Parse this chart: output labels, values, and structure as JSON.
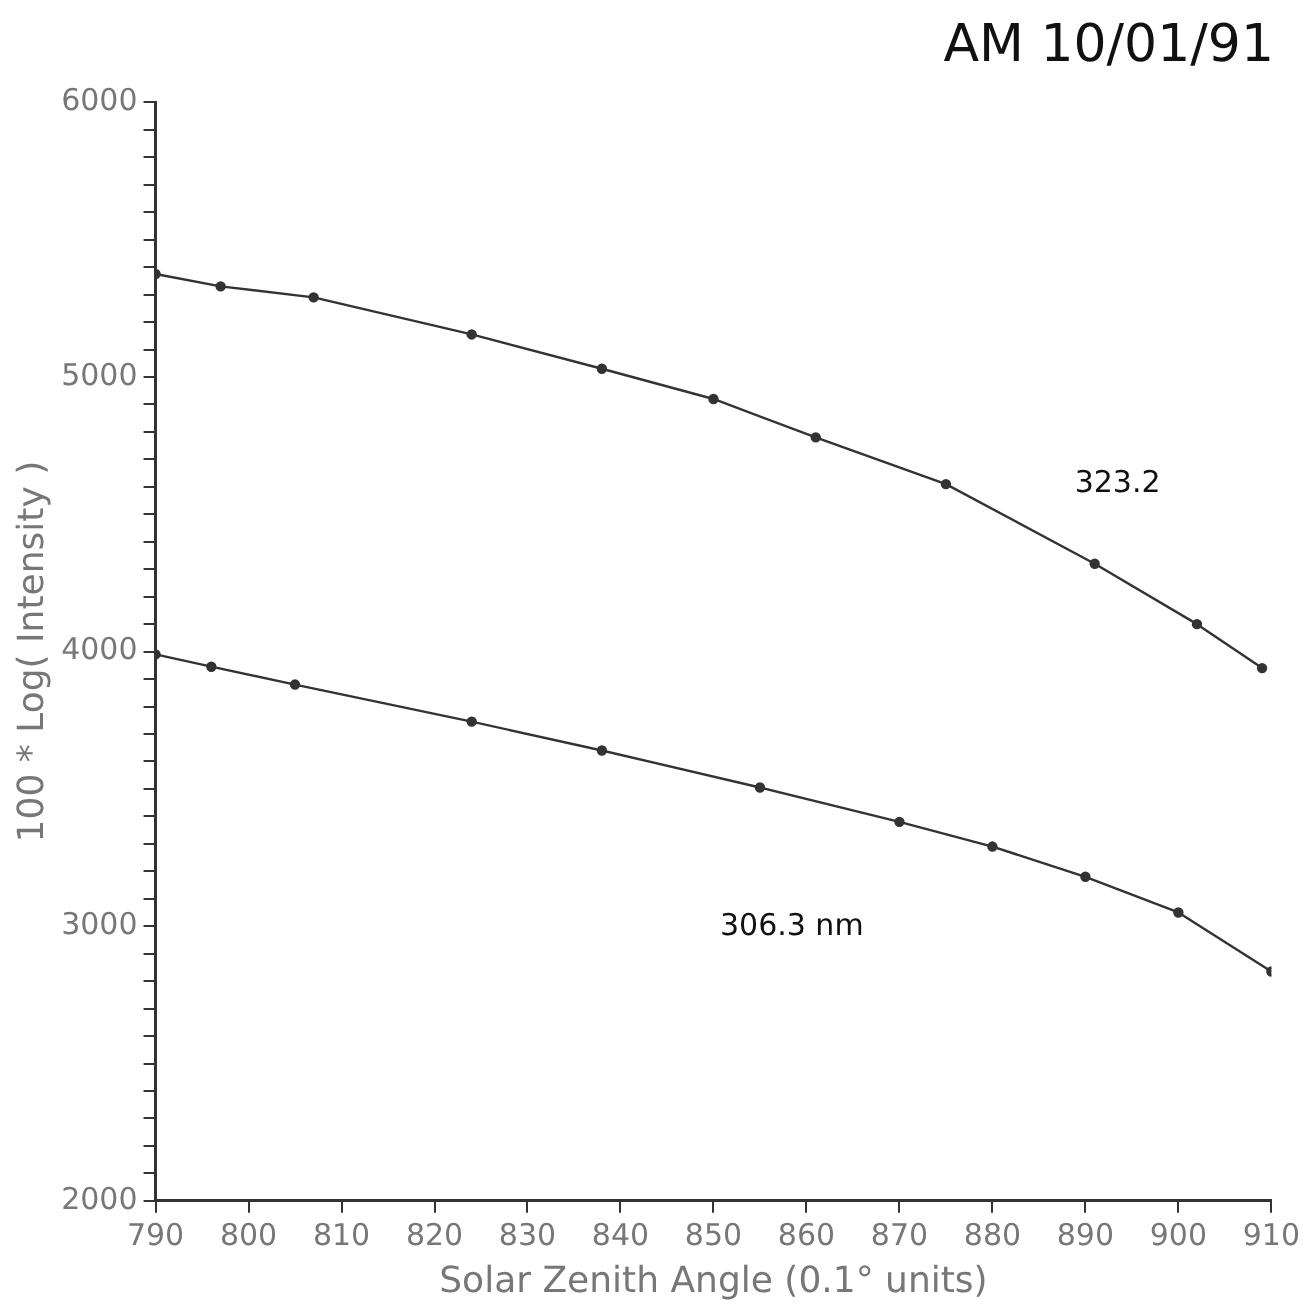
{
  "chart_data": {
    "type": "line",
    "title": "AM 10/01/91",
    "xlabel": "Solar Zenith Angle (0.1° units)",
    "ylabel": "100 * Log( Intensity )",
    "xlim": [
      790,
      910
    ],
    "xticks": [
      790,
      800,
      810,
      820,
      830,
      840,
      850,
      860,
      870,
      880,
      890,
      900,
      910
    ],
    "ylim": [
      2000,
      6000
    ],
    "yticks": [
      2000,
      {
        "value": 2100,
        "label": null
      },
      {
        "value": 2200,
        "label": null
      },
      {
        "value": 2300,
        "label": null
      },
      {
        "value": 2400,
        "label": null
      },
      {
        "value": 2500,
        "label": null
      },
      {
        "value": 2600,
        "label": null
      },
      {
        "value": 2700,
        "label": null
      },
      {
        "value": 2800,
        "label": null
      },
      {
        "value": 2900,
        "label": null
      },
      3000,
      {
        "value": 3100,
        "label": null
      },
      {
        "value": 3200,
        "label": null
      },
      {
        "value": 3300,
        "label": null
      },
      {
        "value": 3400,
        "label": null
      },
      {
        "value": 3500,
        "label": null
      },
      {
        "value": 3600,
        "label": null
      },
      {
        "value": 3700,
        "label": null
      },
      {
        "value": 3800,
        "label": null
      },
      {
        "value": 3900,
        "label": null
      },
      4000,
      {
        "value": 4100,
        "label": null
      },
      {
        "value": 4200,
        "label": null
      },
      {
        "value": 4300,
        "label": null
      },
      {
        "value": 4400,
        "label": null
      },
      {
        "value": 4500,
        "label": null
      },
      {
        "value": 4600,
        "label": null
      },
      {
        "value": 4700,
        "label": null
      },
      {
        "value": 4800,
        "label": null
      },
      {
        "value": 4900,
        "label": null
      },
      5000,
      {
        "value": 5100,
        "label": null
      },
      {
        "value": 5200,
        "label": null
      },
      {
        "value": 5300,
        "label": null
      },
      {
        "value": 5400,
        "label": null
      },
      {
        "value": 5500,
        "label": null
      },
      {
        "value": 5600,
        "label": null
      },
      {
        "value": 5700,
        "label": null
      },
      {
        "value": 5800,
        "label": null
      },
      {
        "value": 5900,
        "label": null
      },
      6000
    ],
    "grid": false,
    "legend": false,
    "marker": "circle",
    "line_style": "solid",
    "series": [
      {
        "name": "323.2",
        "color": "#333333",
        "x": [
          790,
          797,
          807,
          824,
          838,
          850,
          861,
          875,
          891,
          902,
          909
        ],
        "values": [
          5375,
          5330,
          5290,
          5155,
          5030,
          4920,
          4780,
          4610,
          4320,
          4100,
          3940
        ]
      },
      {
        "name": "306.3 nm",
        "color": "#333333",
        "x": [
          790,
          796,
          805,
          824,
          838,
          855,
          870,
          880,
          890,
          900,
          910
        ],
        "values": [
          3990,
          3945,
          3880,
          3745,
          3640,
          3505,
          3380,
          3290,
          3180,
          3050,
          2835
        ]
      }
    ]
  }
}
